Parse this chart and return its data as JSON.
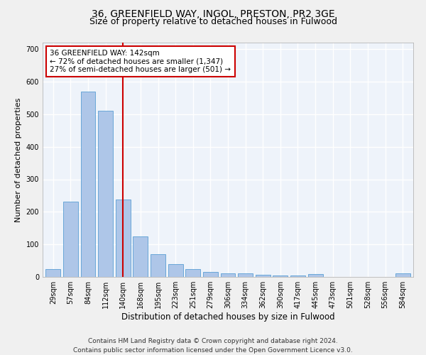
{
  "title1": "36, GREENFIELD WAY, INGOL, PRESTON, PR2 3GE",
  "title2": "Size of property relative to detached houses in Fulwood",
  "xlabel": "Distribution of detached houses by size in Fulwood",
  "ylabel": "Number of detached properties",
  "categories": [
    "29sqm",
    "57sqm",
    "84sqm",
    "112sqm",
    "140sqm",
    "168sqm",
    "195sqm",
    "223sqm",
    "251sqm",
    "279sqm",
    "306sqm",
    "334sqm",
    "362sqm",
    "390sqm",
    "417sqm",
    "445sqm",
    "473sqm",
    "501sqm",
    "528sqm",
    "556sqm",
    "584sqm"
  ],
  "values": [
    25,
    232,
    570,
    510,
    238,
    125,
    70,
    40,
    25,
    15,
    10,
    10,
    7,
    5,
    5,
    8,
    0,
    0,
    0,
    0,
    10
  ],
  "bar_color": "#aec6e8",
  "bar_edge_color": "#5a9fd4",
  "vline_x_idx": 4,
  "vline_color": "#cc0000",
  "annotation_text": "36 GREENFIELD WAY: 142sqm\n← 72% of detached houses are smaller (1,347)\n27% of semi-detached houses are larger (501) →",
  "annotation_box_color": "#ffffff",
  "annotation_box_edge": "#cc0000",
  "footnote": "Contains HM Land Registry data © Crown copyright and database right 2024.\nContains public sector information licensed under the Open Government Licence v3.0.",
  "ylim": [
    0,
    720
  ],
  "yticks": [
    0,
    100,
    200,
    300,
    400,
    500,
    600,
    700
  ],
  "bg_color": "#eef3fa",
  "grid_color": "#ffffff",
  "title1_fontsize": 10,
  "title2_fontsize": 9,
  "xlabel_fontsize": 8.5,
  "ylabel_fontsize": 8,
  "tick_fontsize": 7,
  "annotation_fontsize": 7.5,
  "footnote_fontsize": 6.5
}
